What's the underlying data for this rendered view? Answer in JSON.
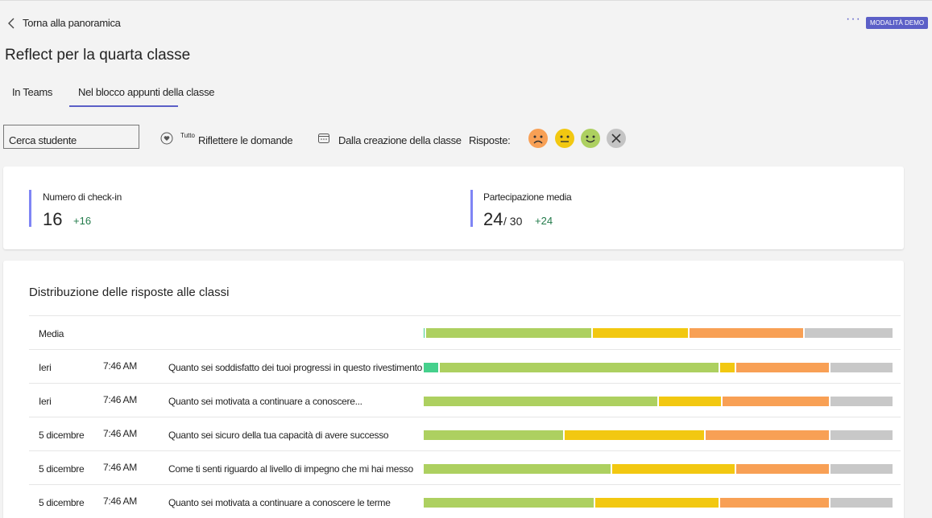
{
  "header": {
    "back": "Torna alla panoramica",
    "badge": "MODALITÀ DEMO",
    "title": "Reflect per la quarta classe"
  },
  "tabs": [
    "In Teams",
    "Nel blocco appunti della classe"
  ],
  "filters": {
    "search": "Cerca studente",
    "all": "Tutto",
    "questions": "Riflettere le domande",
    "period": "Dalla creazione della classe",
    "responses": "Risposte:"
  },
  "stats": [
    {
      "label": "Numero di check-in",
      "value": "16",
      "delta": "+16"
    },
    {
      "label": "Partecipazione media",
      "value": "24",
      "total": "/ 30",
      "delta": "+24"
    }
  ],
  "distribution": {
    "title": "Distribuzione delle risposte alle classi",
    "segment_colors": [
      "#45d08c",
      "#add060",
      "#f2c811",
      "#f8a055",
      "#c8c8c8"
    ],
    "average": {
      "label": "Media",
      "segments": [
        0.5,
        35.5,
        20.5,
        24.5,
        19
      ]
    },
    "rows": [
      {
        "date": "Ieri",
        "time": "7:46 AM",
        "question": "Quanto sei soddisfatto dei tuoi progressi in questo rivestimento",
        "segments": [
          3.5,
          59.5,
          3.5,
          20,
          13.5
        ]
      },
      {
        "date": "Ieri",
        "time": "7:46 AM",
        "question": "Quanto sei motivata a continuare a conoscere...",
        "segments": [
          0,
          50,
          13.5,
          23,
          13.5
        ]
      },
      {
        "date": "5 dicembre",
        "time": "7:46 AM",
        "question": "Quanto sei sicuro della tua capacità di avere successo",
        "segments": [
          0,
          30,
          30,
          26.5,
          13.5
        ]
      },
      {
        "date": "5 dicembre",
        "time": "7:46 AM",
        "question": "Come ti senti riguardo al livello di impegno che mi hai messo",
        "segments": [
          0,
          40,
          26.5,
          20,
          13.5
        ]
      },
      {
        "date": "5 dicembre",
        "time": "7:46 AM",
        "question": "Quanto sei motivata a continuare a conoscere le terme",
        "segments": [
          0,
          36.5,
          26.5,
          23.5,
          13.5
        ]
      }
    ]
  }
}
